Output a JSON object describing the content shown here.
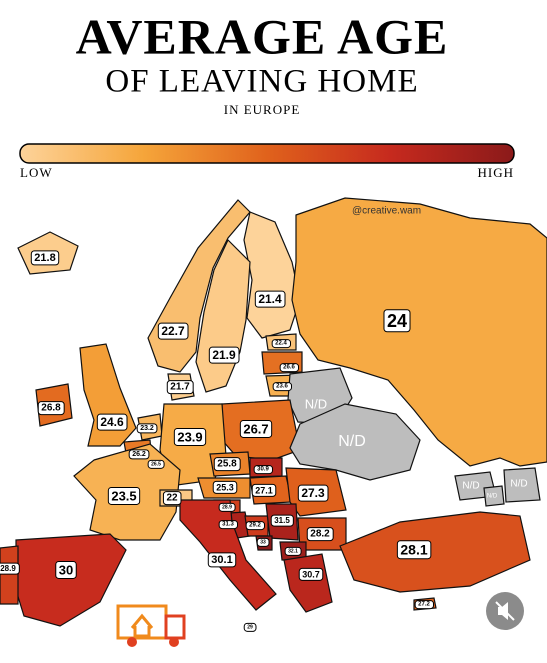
{
  "header": {
    "title": "AVERAGE AGE",
    "subtitle": "OF LEAVING HOME",
    "caption": "IN EUROPE"
  },
  "legend": {
    "low": "LOW",
    "high": "HIGH",
    "colors": [
      "#fdd39a",
      "#f5a53a",
      "#e0621c",
      "#c62a1e",
      "#8b1a1a"
    ],
    "nd_color": "#bdbdbd"
  },
  "credit": "@creative.wam",
  "regions": [
    {
      "value": 21.8
    },
    {
      "value": 21.4
    },
    {
      "value": 22.7
    },
    {
      "value": 24
    },
    {
      "value": 21.9
    },
    {
      "value": 22.4
    },
    {
      "value": 26.6
    },
    {
      "value": 23.6
    },
    {
      "value": 21.7
    },
    {
      "value": 26.8
    },
    {
      "value": "N/D"
    },
    {
      "value": 24.6
    },
    {
      "value": 23.2
    },
    {
      "value": 26.7
    },
    {
      "value": "N/D"
    },
    {
      "value": 23.9
    },
    {
      "value": 26.2
    },
    {
      "value": 26.5
    },
    {
      "value": 25.8
    },
    {
      "value": 30.9
    },
    {
      "value": 25.3
    },
    {
      "value": 27.1
    },
    {
      "value": 27.3
    },
    {
      "value": "N/D"
    },
    {
      "value": "N/D"
    },
    {
      "value": "N/D"
    },
    {
      "value": 23.5
    },
    {
      "value": 22
    },
    {
      "value": 28.9
    },
    {
      "value": 31.3
    },
    {
      "value": 29.2
    },
    {
      "value": 31.5
    },
    {
      "value": 28.2
    },
    {
      "value": 33
    },
    {
      "value": 32.1
    },
    {
      "value": 28.1
    },
    {
      "value": 30.1
    },
    {
      "value": 30
    },
    {
      "value": 28.9
    },
    {
      "value": 30.7
    },
    {
      "value": 27.2
    },
    {
      "value": 29
    }
  ]
}
